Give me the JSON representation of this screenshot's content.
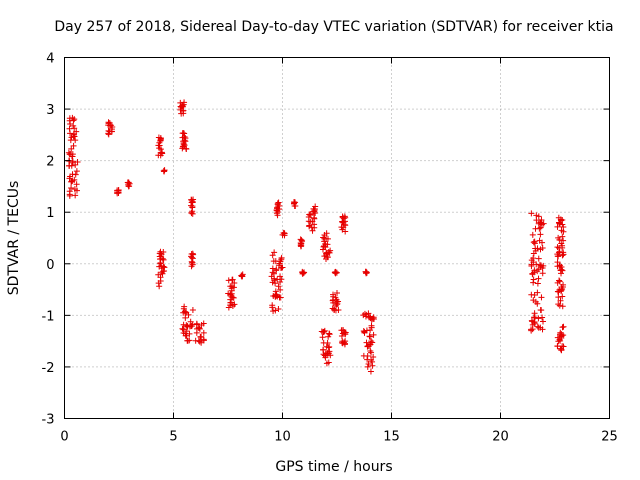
{
  "chart_data": {
    "type": "scatter",
    "title": "Day 257 of 2018, Sidereal Day-to-day VTEC variation (SDTVAR) for receiver ktia",
    "xlabel": "GPS time / hours",
    "ylabel": "SDTVAR / TECUs",
    "xlim": [
      0,
      25
    ],
    "ylim": [
      -3,
      4
    ],
    "xticks": [
      0,
      5,
      10,
      15,
      20,
      25
    ],
    "yticks": [
      -3,
      -2,
      -1,
      0,
      1,
      2,
      3,
      4
    ],
    "xtick_labels": [
      "0",
      "5",
      "10",
      "15",
      "20",
      "25"
    ],
    "ytick_labels": [
      "-3",
      "-2",
      "-1",
      "0",
      "1",
      "2",
      "3",
      "4"
    ],
    "grid": true,
    "marker": "+",
    "color": "#e60000",
    "series": [
      {
        "name": "ktia",
        "clusters": [
          {
            "x": [
              0.2,
              0.6
            ],
            "y": [
              1.3,
              2.85
            ]
          },
          {
            "x": [
              2.0,
              2.2
            ],
            "y": [
              2.45,
              2.75
            ]
          },
          {
            "x": [
              2.4,
              2.5
            ],
            "y": [
              1.35,
              1.45
            ]
          },
          {
            "x": [
              2.9,
              3.0
            ],
            "y": [
              1.5,
              1.58
            ]
          },
          {
            "x": [
              4.3,
              4.5
            ],
            "y": [
              2.1,
              2.45
            ]
          },
          {
            "x": [
              4.55,
              4.6
            ],
            "y": [
              1.78,
              1.82
            ]
          },
          {
            "x": [
              4.3,
              4.6
            ],
            "y": [
              -0.45,
              0.25
            ]
          },
          {
            "x": [
              5.3,
              5.5
            ],
            "y": [
              2.9,
              3.15
            ]
          },
          {
            "x": [
              5.4,
              5.6
            ],
            "y": [
              2.15,
              2.55
            ]
          },
          {
            "x": [
              5.8,
              5.9
            ],
            "y": [
              0.95,
              1.25
            ]
          },
          {
            "x": [
              5.8,
              5.9
            ],
            "y": [
              -0.05,
              0.2
            ]
          },
          {
            "x": [
              5.4,
              5.9
            ],
            "y": [
              -1.5,
              -0.8
            ]
          },
          {
            "x": [
              6.0,
              6.4
            ],
            "y": [
              -1.55,
              -1.15
            ]
          },
          {
            "x": [
              7.5,
              7.8
            ],
            "y": [
              -0.95,
              -0.3
            ]
          },
          {
            "x": [
              8.1,
              8.2
            ],
            "y": [
              -0.25,
              -0.2
            ]
          },
          {
            "x": [
              9.5,
              10.0
            ],
            "y": [
              -0.95,
              0.25
            ]
          },
          {
            "x": [
              9.7,
              9.9
            ],
            "y": [
              0.9,
              1.2
            ]
          },
          {
            "x": [
              10.0,
              10.1
            ],
            "y": [
              0.55,
              0.6
            ]
          },
          {
            "x": [
              10.5,
              10.6
            ],
            "y": [
              1.1,
              1.2
            ]
          },
          {
            "x": [
              10.8,
              10.9
            ],
            "y": [
              0.3,
              0.5
            ]
          },
          {
            "x": [
              10.9,
              11.0
            ],
            "y": [
              -0.2,
              -0.15
            ]
          },
          {
            "x": [
              11.2,
              11.5
            ],
            "y": [
              0.6,
              1.15
            ]
          },
          {
            "x": [
              11.8,
              12.2
            ],
            "y": [
              0.05,
              0.6
            ]
          },
          {
            "x": [
              11.8,
              12.2
            ],
            "y": [
              -1.95,
              -1.3
            ]
          },
          {
            "x": [
              12.3,
              12.6
            ],
            "y": [
              -0.95,
              -0.55
            ]
          },
          {
            "x": [
              12.4,
              12.5
            ],
            "y": [
              -0.2,
              -0.15
            ]
          },
          {
            "x": [
              12.7,
              12.9
            ],
            "y": [
              0.6,
              0.95
            ]
          },
          {
            "x": [
              12.7,
              12.9
            ],
            "y": [
              -1.6,
              -1.25
            ]
          },
          {
            "x": [
              13.7,
              14.2
            ],
            "y": [
              -2.1,
              -0.95
            ]
          },
          {
            "x": [
              13.8,
              13.9
            ],
            "y": [
              -0.2,
              -0.15
            ]
          },
          {
            "x": [
              21.4,
              22.0
            ],
            "y": [
              -1.3,
              1.05
            ]
          },
          {
            "x": [
              22.6,
              22.9
            ],
            "y": [
              -0.85,
              0.9
            ]
          },
          {
            "x": [
              22.6,
              22.9
            ],
            "y": [
              -1.7,
              -1.2
            ]
          }
        ]
      }
    ]
  }
}
